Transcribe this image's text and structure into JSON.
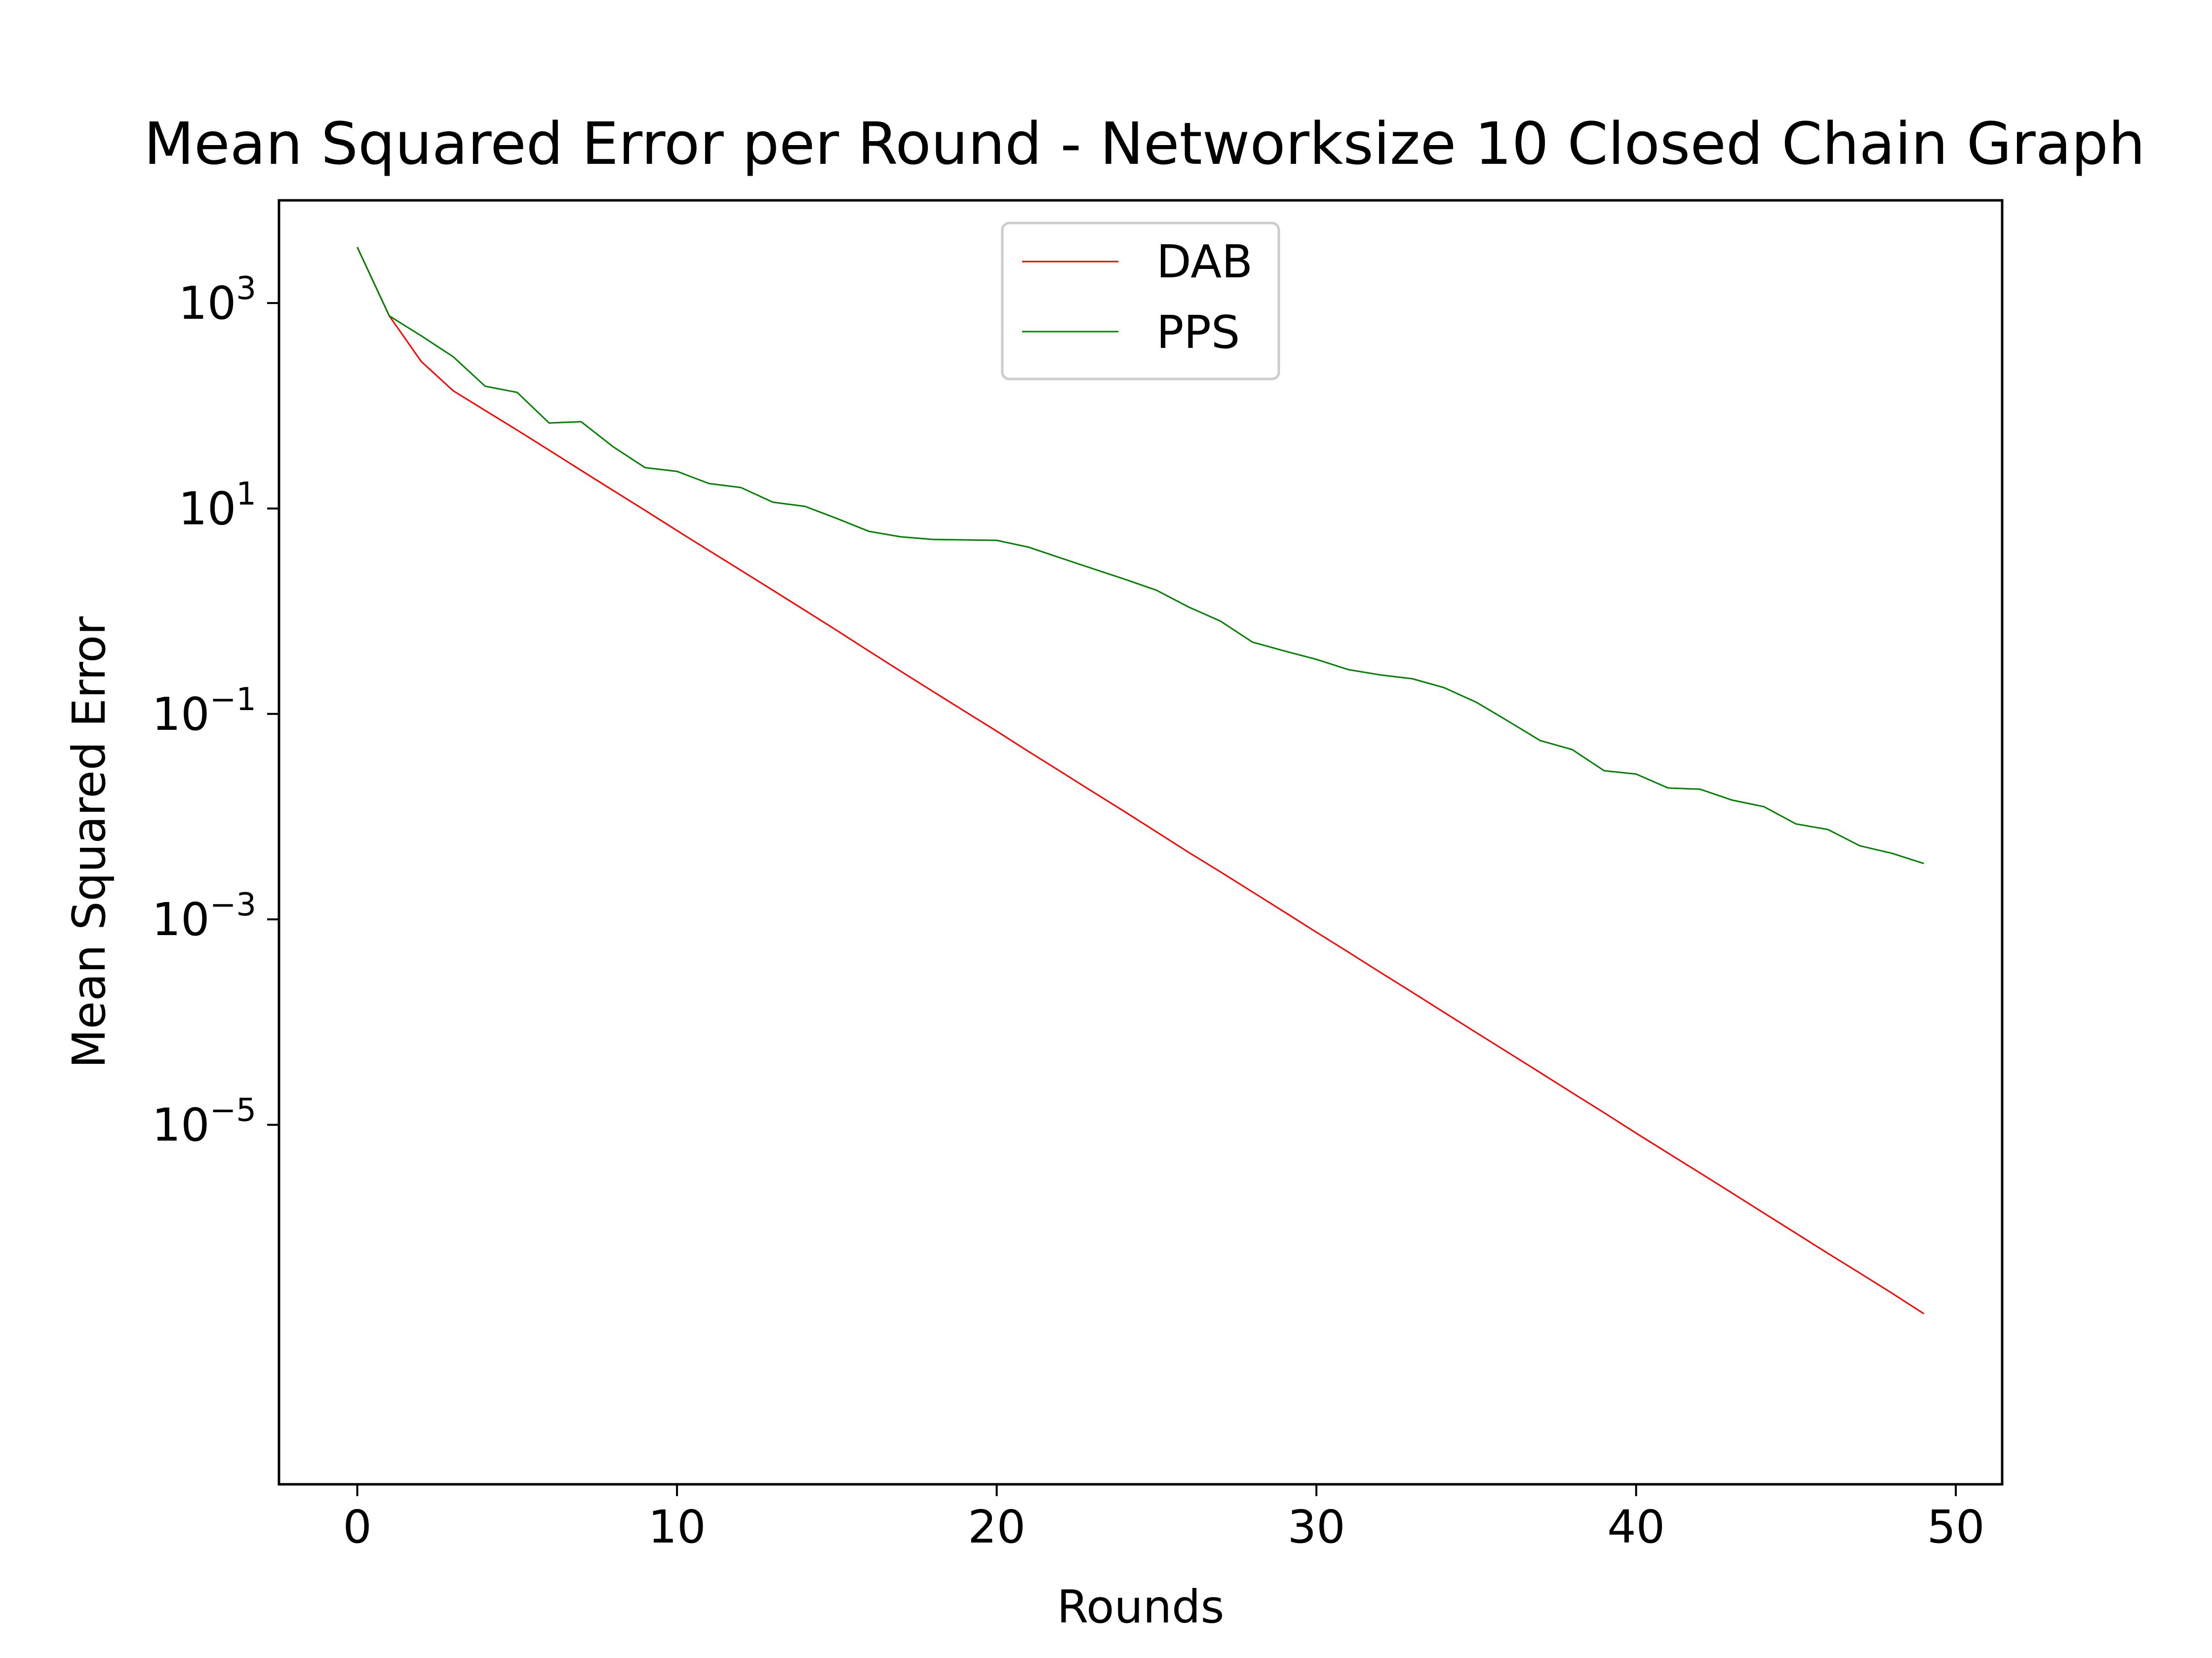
{
  "chart_data": {
    "type": "line",
    "title": "Mean Squared Error per Round - Networksize 10 Closed Chain Graph",
    "xlabel": "Rounds",
    "ylabel": "Mean Squared Error",
    "yscale": "log",
    "xlim": [
      -2.45,
      51.45
    ],
    "ylim_log10": [
      -8.5,
      4.0
    ],
    "xticks": [
      0,
      10,
      20,
      30,
      40,
      50
    ],
    "xtick_labels": [
      "0",
      "10",
      "20",
      "30",
      "40",
      "50"
    ],
    "yticks_log10": [
      3,
      1,
      -1,
      -3,
      -5
    ],
    "ytick_labels": [
      {
        "base": "10",
        "exp": "3"
      },
      {
        "base": "10",
        "exp": "1"
      },
      {
        "base": "10",
        "exp": "−1"
      },
      {
        "base": "10",
        "exp": "−3"
      },
      {
        "base": "10",
        "exp": "−5"
      }
    ],
    "grid": false,
    "legend_position": "upper center",
    "x": [
      0,
      1,
      2,
      3,
      4,
      5,
      6,
      7,
      8,
      9,
      10,
      11,
      12,
      13,
      14,
      15,
      16,
      17,
      18,
      19,
      20,
      21,
      22,
      23,
      24,
      25,
      26,
      27,
      28,
      29,
      30,
      31,
      32,
      33,
      34,
      35,
      36,
      37,
      38,
      39,
      40,
      41,
      42,
      43,
      44,
      45,
      46,
      47,
      48,
      49
    ],
    "series": [
      {
        "name": "DAB",
        "color": "#ff0000",
        "values": [
          3500,
          750,
          270,
          140,
          90,
          58,
          37,
          23.5,
          15,
          9.6,
          6.1,
          3.9,
          2.5,
          1.6,
          1.02,
          0.65,
          0.41,
          0.26,
          0.166,
          0.106,
          0.068,
          0.043,
          0.0275,
          0.0175,
          0.0112,
          0.0071,
          0.0045,
          0.0029,
          0.00185,
          0.00118,
          0.00075,
          0.00048,
          0.000305,
          0.000195,
          0.000124,
          7.9e-05,
          5.05e-05,
          3.22e-05,
          2.05e-05,
          1.31e-05,
          8.3e-06,
          5.3e-06,
          3.4e-06,
          2.17e-06,
          1.38e-06,
          8.8e-07,
          5.6e-07,
          3.6e-07,
          2.3e-07,
          1.45e-07
        ]
      },
      {
        "name": "PPS",
        "color": "#008000",
        "values": [
          3500,
          750,
          480,
          300,
          155,
          135,
          68,
          70,
          40,
          25,
          23,
          17.5,
          16,
          11.5,
          10.5,
          8,
          6,
          5.3,
          5,
          4.95,
          4.9,
          4.2,
          3.3,
          2.6,
          2.05,
          1.6,
          1.1,
          0.8,
          0.5,
          0.41,
          0.34,
          0.27,
          0.24,
          0.22,
          0.18,
          0.13,
          0.085,
          0.055,
          0.045,
          0.028,
          0.026,
          0.019,
          0.0185,
          0.0145,
          0.0125,
          0.0085,
          0.0075,
          0.0052,
          0.0044,
          0.0035
        ]
      }
    ]
  }
}
